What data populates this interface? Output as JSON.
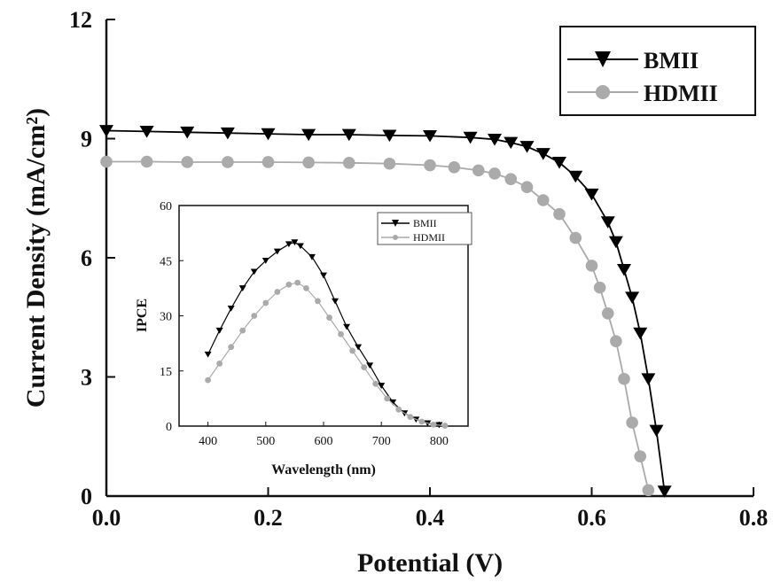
{
  "chart_data": [
    {
      "type": "line",
      "xlabel": "Potential (V)",
      "ylabel": "Current Density (mA/cm²)",
      "xlim": [
        0.0,
        0.8
      ],
      "ylim": [
        0,
        12
      ],
      "xticks": [
        "0.0",
        "0.2",
        "0.4",
        "0.6",
        "0.8"
      ],
      "yticks": [
        "0",
        "3",
        "6",
        "9",
        "12"
      ],
      "legend_position": "top-right",
      "series": [
        {
          "name": "BMII",
          "color": "#000000",
          "marker": "triangle-down",
          "points": [
            [
              0.0,
              9.2
            ],
            [
              0.05,
              9.18
            ],
            [
              0.1,
              9.16
            ],
            [
              0.15,
              9.14
            ],
            [
              0.2,
              9.12
            ],
            [
              0.25,
              9.1
            ],
            [
              0.3,
              9.1
            ],
            [
              0.35,
              9.08
            ],
            [
              0.4,
              9.07
            ],
            [
              0.45,
              9.03
            ],
            [
              0.48,
              8.98
            ],
            [
              0.5,
              8.9
            ],
            [
              0.52,
              8.8
            ],
            [
              0.54,
              8.62
            ],
            [
              0.56,
              8.4
            ],
            [
              0.58,
              8.05
            ],
            [
              0.6,
              7.6
            ],
            [
              0.62,
              6.9
            ],
            [
              0.63,
              6.4
            ],
            [
              0.64,
              5.7
            ],
            [
              0.65,
              5.0
            ],
            [
              0.66,
              4.1
            ],
            [
              0.67,
              2.95
            ],
            [
              0.68,
              1.65
            ],
            [
              0.69,
              0.12
            ]
          ]
        },
        {
          "name": "HDMII",
          "color": "#aaaaaa",
          "marker": "circle",
          "points": [
            [
              0.0,
              8.42
            ],
            [
              0.05,
              8.42
            ],
            [
              0.1,
              8.41
            ],
            [
              0.15,
              8.41
            ],
            [
              0.2,
              8.41
            ],
            [
              0.25,
              8.4
            ],
            [
              0.3,
              8.39
            ],
            [
              0.35,
              8.37
            ],
            [
              0.4,
              8.33
            ],
            [
              0.43,
              8.28
            ],
            [
              0.46,
              8.2
            ],
            [
              0.48,
              8.12
            ],
            [
              0.5,
              7.98
            ],
            [
              0.52,
              7.78
            ],
            [
              0.54,
              7.45
            ],
            [
              0.56,
              7.1
            ],
            [
              0.58,
              6.5
            ],
            [
              0.6,
              5.8
            ],
            [
              0.61,
              5.25
            ],
            [
              0.62,
              4.6
            ],
            [
              0.63,
              3.9
            ],
            [
              0.64,
              2.95
            ],
            [
              0.65,
              1.85
            ],
            [
              0.66,
              1.0
            ],
            [
              0.67,
              0.15
            ]
          ]
        }
      ]
    },
    {
      "type": "line",
      "xlabel": "Wavelength (nm)",
      "ylabel": "IPCE",
      "xlim": [
        350,
        850
      ],
      "ylim": [
        0,
        60
      ],
      "xticks": [
        "400",
        "500",
        "600",
        "700",
        "800"
      ],
      "yticks": [
        "0",
        "15",
        "30",
        "45",
        "60"
      ],
      "legend_position": "top-right",
      "series": [
        {
          "name": "BMII",
          "color": "#000000",
          "marker": "triangle-down",
          "points": [
            [
              400,
              19.5
            ],
            [
              420,
              26
            ],
            [
              440,
              32
            ],
            [
              460,
              37.5
            ],
            [
              480,
              42
            ],
            [
              500,
              45
            ],
            [
              520,
              47.5
            ],
            [
              540,
              49.5
            ],
            [
              550,
              50
            ],
            [
              560,
              49
            ],
            [
              580,
              46
            ],
            [
              600,
              41
            ],
            [
              620,
              34
            ],
            [
              640,
              27
            ],
            [
              660,
              21.5
            ],
            [
              680,
              16.5
            ],
            [
              700,
              11
            ],
            [
              720,
              6.5
            ],
            [
              740,
              3.5
            ],
            [
              760,
              1.8
            ],
            [
              780,
              0.8
            ],
            [
              800,
              0.3
            ]
          ]
        },
        {
          "name": "HDMII",
          "color": "#aaaaaa",
          "marker": "circle",
          "points": [
            [
              400,
              12.5
            ],
            [
              420,
              17
            ],
            [
              440,
              21.5
            ],
            [
              460,
              26
            ],
            [
              480,
              30
            ],
            [
              500,
              33.5
            ],
            [
              520,
              36.5
            ],
            [
              540,
              38.5
            ],
            [
              555,
              39
            ],
            [
              570,
              37.5
            ],
            [
              590,
              34
            ],
            [
              610,
              29.5
            ],
            [
              630,
              25
            ],
            [
              650,
              20.5
            ],
            [
              670,
              16
            ],
            [
              690,
              11.5
            ],
            [
              710,
              7.5
            ],
            [
              730,
              4.5
            ],
            [
              750,
              2.5
            ],
            [
              770,
              1.2
            ],
            [
              790,
              0.4
            ],
            [
              810,
              0.1
            ]
          ]
        }
      ]
    }
  ]
}
